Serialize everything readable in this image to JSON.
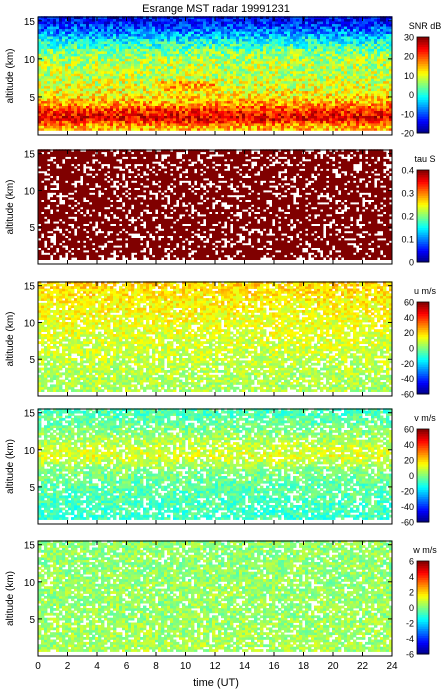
{
  "title": "Esrange MST radar 19991231",
  "xlabel": "time (UT)",
  "chart_data": [
    {
      "type": "heatmap",
      "ylabel": "altitude (km)",
      "y_ticks": [
        "5",
        "10",
        "15"
      ],
      "colorbar": {
        "label": "SNR dB",
        "ticks": [
          "30",
          "20",
          "10",
          "0",
          "-10",
          "-20"
        ],
        "range": [
          -20,
          30
        ]
      },
      "description_scheme": "SNR high near ground (~25 dB below 3 km), decreasing with altitude to ~-15 dB above 13 km",
      "profile": {
        "altitude_km": [
          1,
          2,
          3,
          4,
          5,
          6,
          7,
          8,
          9,
          10,
          11,
          12,
          13,
          14,
          15
        ],
        "value": [
          15,
          25,
          22,
          16,
          12,
          10,
          9,
          8,
          8,
          7,
          4,
          0,
          -5,
          -10,
          -14
        ]
      }
    },
    {
      "type": "heatmap",
      "ylabel": "altitude (km)",
      "y_ticks": [
        "5",
        "10",
        "15"
      ],
      "colorbar": {
        "label": "tau S",
        "ticks": [
          "0.4",
          "0.3",
          "0.2",
          "0.1",
          "0"
        ],
        "range": [
          0,
          0.4
        ]
      },
      "profile": {
        "altitude_km": [
          1,
          3,
          5,
          7,
          9,
          11,
          13,
          15
        ],
        "value": [
          0.4,
          0.4,
          0.4,
          0.4,
          0.4,
          0.4,
          0.4,
          0.4
        ]
      }
    },
    {
      "type": "heatmap",
      "ylabel": "altitude (km)",
      "y_ticks": [
        "5",
        "10",
        "15"
      ],
      "colorbar": {
        "label": "u m/s",
        "ticks": [
          "60",
          "40",
          "20",
          "0",
          "-20",
          "-40",
          "-60"
        ],
        "range": [
          -60,
          60
        ]
      },
      "profile": {
        "altitude_km": [
          1,
          3,
          5,
          7,
          9,
          11,
          13,
          15
        ],
        "value": [
          5,
          6,
          8,
          10,
          12,
          14,
          16,
          20
        ]
      }
    },
    {
      "type": "heatmap",
      "ylabel": "altitude (km)",
      "y_ticks": [
        "5",
        "10",
        "15"
      ],
      "colorbar": {
        "label": "v m/s",
        "ticks": [
          "60",
          "40",
          "20",
          "0",
          "-20",
          "-40",
          "-60"
        ],
        "range": [
          -60,
          60
        ]
      },
      "profile": {
        "altitude_km": [
          1,
          3,
          5,
          7,
          9,
          11,
          13,
          15
        ],
        "value": [
          -8,
          -6,
          -4,
          0,
          12,
          6,
          -2,
          -6
        ]
      }
    },
    {
      "type": "heatmap",
      "ylabel": "altitude (km)",
      "y_ticks": [
        "5",
        "10",
        "15"
      ],
      "colorbar": {
        "label": "w m/s",
        "ticks": [
          "6",
          "4",
          "2",
          "0",
          "-2",
          "-4",
          "-6"
        ],
        "range": [
          -6,
          6
        ]
      },
      "profile": {
        "altitude_km": [
          1,
          3,
          5,
          7,
          9,
          11,
          13,
          15
        ],
        "value": [
          0.5,
          0.4,
          0.3,
          0.3,
          0.3,
          0.2,
          0.2,
          0.2
        ]
      }
    }
  ],
  "x_ticks": [
    "0",
    "2",
    "4",
    "6",
    "8",
    "10",
    "12",
    "14",
    "16",
    "18",
    "20",
    "22",
    "24"
  ],
  "xlim": [
    0,
    24
  ],
  "ylim": [
    0,
    15.5
  ]
}
